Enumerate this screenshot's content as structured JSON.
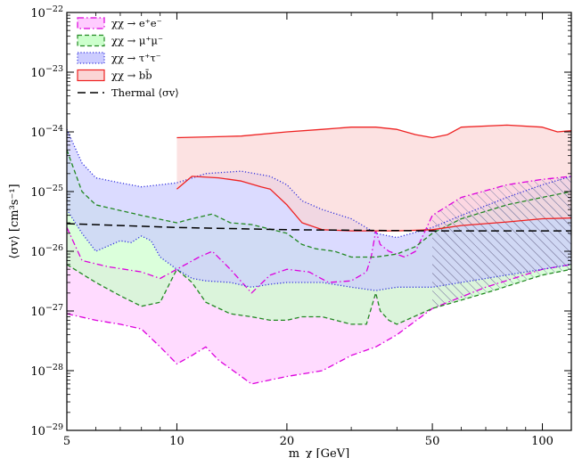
{
  "chart_data": {
    "type": "area",
    "title": "",
    "xlabel": "m_χ [GeV]",
    "ylabel": "⟨σv⟩ [cm³s⁻¹]",
    "xscale": "log",
    "yscale": "log",
    "xlim": [
      5,
      120
    ],
    "ylim": [
      1e-29,
      1e-22
    ],
    "xticks": [
      {
        "value": 5,
        "label": "5"
      },
      {
        "value": 10,
        "label": "10"
      },
      {
        "value": 20,
        "label": "20"
      },
      {
        "value": 50,
        "label": "50"
      },
      {
        "value": 100,
        "label": "100"
      }
    ],
    "yticks": [
      {
        "value": 1e-29,
        "base": "10",
        "exp": "−29"
      },
      {
        "value": 1e-28,
        "base": "10",
        "exp": "−28"
      },
      {
        "value": 1e-27,
        "base": "10",
        "exp": "−27"
      },
      {
        "value": 1e-26,
        "base": "10",
        "exp": "−26"
      },
      {
        "value": 1e-25,
        "base": "10",
        "exp": "−25"
      },
      {
        "value": 1e-24,
        "base": "10",
        "exp": "−24"
      },
      {
        "value": 1e-23,
        "base": "10",
        "exp": "−23"
      },
      {
        "value": 1e-22,
        "base": "10",
        "exp": "−22"
      }
    ],
    "grid": false,
    "legend_position": "top-left",
    "hatch_region_start_x": 50,
    "series": [
      {
        "name": "χχ → e⁺e⁻",
        "color": "#dd00dd",
        "fill": "#ffccff",
        "line_style": "dashdot",
        "upper": [
          [
            5,
            2.5e-26
          ],
          [
            5.5,
            7e-27
          ],
          [
            6.5,
            5.5e-27
          ],
          [
            8,
            4.5e-27
          ],
          [
            9,
            3.5e-27
          ],
          [
            10,
            5e-27
          ],
          [
            11.5,
            8e-27
          ],
          [
            12.5,
            1e-26
          ],
          [
            14,
            5e-27
          ],
          [
            16,
            2e-27
          ],
          [
            18,
            4e-27
          ],
          [
            20,
            5e-27
          ],
          [
            23,
            4.5e-27
          ],
          [
            26,
            3e-27
          ],
          [
            30,
            3.2e-27
          ],
          [
            33,
            4.5e-27
          ],
          [
            34,
            8e-27
          ],
          [
            35,
            2.2e-26
          ],
          [
            36,
            1.3e-26
          ],
          [
            38,
            1e-26
          ],
          [
            42,
            8e-27
          ],
          [
            45,
            1e-26
          ],
          [
            50,
            4e-26
          ],
          [
            60,
            8e-26
          ],
          [
            80,
            1.3e-25
          ],
          [
            100,
            1.6e-25
          ],
          [
            120,
            1.8e-25
          ]
        ],
        "lower": [
          [
            5,
            9e-28
          ],
          [
            6,
            7e-28
          ],
          [
            7,
            6e-28
          ],
          [
            8,
            5e-28
          ],
          [
            9,
            2.5e-28
          ],
          [
            10,
            1.3e-28
          ],
          [
            11,
            1.8e-28
          ],
          [
            12,
            2.5e-28
          ],
          [
            13,
            1.5e-28
          ],
          [
            15,
            8e-29
          ],
          [
            16,
            6e-29
          ],
          [
            18,
            7e-29
          ],
          [
            20,
            8e-29
          ],
          [
            25,
            1e-28
          ],
          [
            30,
            1.8e-28
          ],
          [
            35,
            2.5e-28
          ],
          [
            40,
            4e-28
          ],
          [
            50,
            1.1e-27
          ],
          [
            70,
            2.5e-27
          ],
          [
            100,
            5e-27
          ],
          [
            120,
            6e-27
          ]
        ]
      },
      {
        "name": "χχ → μ⁺μ⁻",
        "color": "#228822",
        "fill": "#ccffcc",
        "line_style": "dashed",
        "upper": [
          [
            5,
            5e-25
          ],
          [
            5.5,
            1e-25
          ],
          [
            6,
            6e-26
          ],
          [
            8,
            4e-26
          ],
          [
            10,
            3e-26
          ],
          [
            11,
            3.5e-26
          ],
          [
            12.5,
            4.2e-26
          ],
          [
            14,
            3e-26
          ],
          [
            16,
            2.8e-26
          ],
          [
            20,
            2e-26
          ],
          [
            22,
            1.3e-26
          ],
          [
            24,
            1.1e-26
          ],
          [
            27,
            1e-26
          ],
          [
            30,
            8e-27
          ],
          [
            35,
            8e-27
          ],
          [
            40,
            9e-27
          ],
          [
            45,
            1.2e-26
          ],
          [
            50,
            2e-26
          ],
          [
            60,
            3.5e-26
          ],
          [
            80,
            6e-26
          ],
          [
            100,
            8e-26
          ],
          [
            120,
            1e-25
          ]
        ],
        "lower": [
          [
            5,
            6e-27
          ],
          [
            6,
            3e-27
          ],
          [
            7,
            1.8e-27
          ],
          [
            8,
            1.2e-27
          ],
          [
            9,
            1.4e-27
          ],
          [
            10,
            5e-27
          ],
          [
            11,
            3e-27
          ],
          [
            12,
            1.4e-27
          ],
          [
            14,
            9e-28
          ],
          [
            16,
            8e-28
          ],
          [
            18,
            7e-28
          ],
          [
            20,
            7e-28
          ],
          [
            22,
            8e-28
          ],
          [
            25,
            8e-28
          ],
          [
            30,
            6e-28
          ],
          [
            33,
            6e-28
          ],
          [
            35,
            2e-27
          ],
          [
            36,
            1e-27
          ],
          [
            38,
            7e-28
          ],
          [
            40,
            6e-28
          ],
          [
            50,
            1.1e-27
          ],
          [
            70,
            2e-27
          ],
          [
            100,
            4e-27
          ],
          [
            120,
            5e-27
          ]
        ]
      },
      {
        "name": "χχ → τ⁺τ⁻",
        "color": "#3333dd",
        "fill": "#ccccff",
        "line_style": "dotted",
        "upper": [
          [
            5,
            1.1e-24
          ],
          [
            5.5,
            3e-25
          ],
          [
            6,
            1.7e-25
          ],
          [
            7,
            1.4e-25
          ],
          [
            8,
            1.2e-25
          ],
          [
            10,
            1.4e-25
          ],
          [
            12,
            2e-25
          ],
          [
            15,
            2.2e-25
          ],
          [
            18,
            1.8e-25
          ],
          [
            20,
            1.3e-25
          ],
          [
            22,
            7e-26
          ],
          [
            25,
            5e-26
          ],
          [
            30,
            3.5e-26
          ],
          [
            35,
            2e-26
          ],
          [
            40,
            1.7e-26
          ],
          [
            50,
            2.5e-26
          ],
          [
            60,
            4e-26
          ],
          [
            80,
            8e-26
          ],
          [
            100,
            1.3e-25
          ],
          [
            120,
            1.8e-25
          ]
        ],
        "lower": [
          [
            5,
            5e-26
          ],
          [
            5.5,
            2e-26
          ],
          [
            6,
            1e-26
          ],
          [
            7,
            1.5e-26
          ],
          [
            7.5,
            1.4e-26
          ],
          [
            8,
            1.8e-26
          ],
          [
            8.5,
            1.5e-26
          ],
          [
            9,
            8e-27
          ],
          [
            10,
            5e-27
          ],
          [
            11,
            3.5e-27
          ],
          [
            12,
            3.2e-27
          ],
          [
            14,
            3e-27
          ],
          [
            16,
            2.5e-27
          ],
          [
            18,
            2.8e-27
          ],
          [
            20,
            3e-27
          ],
          [
            25,
            3e-27
          ],
          [
            30,
            2.5e-27
          ],
          [
            35,
            2.2e-27
          ],
          [
            40,
            2.5e-27
          ],
          [
            50,
            2.5e-27
          ],
          [
            70,
            3.5e-27
          ],
          [
            100,
            5e-27
          ],
          [
            120,
            6e-27
          ]
        ]
      },
      {
        "name": "χχ → bb̄",
        "color": "#ee2222",
        "fill": "#fbd5d5",
        "line_style": "solid",
        "upper": [
          [
            10,
            8e-25
          ],
          [
            15,
            8.5e-25
          ],
          [
            20,
            1e-24
          ],
          [
            25,
            1.1e-24
          ],
          [
            30,
            1.2e-24
          ],
          [
            35,
            1.2e-24
          ],
          [
            40,
            1.1e-24
          ],
          [
            45,
            9e-25
          ],
          [
            50,
            8e-25
          ],
          [
            55,
            9e-25
          ],
          [
            60,
            1.2e-24
          ],
          [
            80,
            1.3e-24
          ],
          [
            100,
            1.2e-24
          ],
          [
            110,
            1e-24
          ],
          [
            120,
            1.05e-24
          ]
        ],
        "lower": [
          [
            10,
            1.1e-25
          ],
          [
            11,
            1.8e-25
          ],
          [
            13,
            1.7e-25
          ],
          [
            15,
            1.5e-25
          ],
          [
            17,
            1.2e-25
          ],
          [
            18,
            1.1e-25
          ],
          [
            20,
            6e-26
          ],
          [
            22,
            3e-26
          ],
          [
            25,
            2.3e-26
          ],
          [
            30,
            2.2e-26
          ],
          [
            40,
            2.2e-26
          ],
          [
            50,
            2.3e-26
          ],
          [
            60,
            2.7e-26
          ],
          [
            70,
            2.9e-26
          ],
          [
            80,
            3.1e-26
          ],
          [
            100,
            3.5e-26
          ],
          [
            120,
            3.6e-26
          ]
        ]
      },
      {
        "name": "Thermal ⟨σv⟩",
        "color": "#000000",
        "line_style": "longdash",
        "values": [
          [
            5,
            2.9e-26
          ],
          [
            10,
            2.5e-26
          ],
          [
            20,
            2.3e-26
          ],
          [
            50,
            2.2e-26
          ],
          [
            100,
            2.2e-26
          ],
          [
            120,
            2.2e-26
          ]
        ]
      }
    ]
  }
}
